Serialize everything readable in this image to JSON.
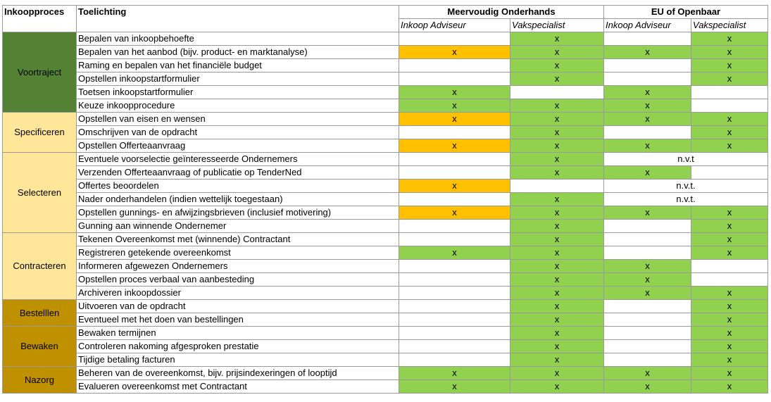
{
  "header": {
    "process": "Inkoopproces",
    "explanation": "Toelichting",
    "groups": [
      {
        "title": "Meervoudig Onderhands",
        "subs": [
          "Inkoop Adviseur",
          "Vakspecialist"
        ]
      },
      {
        "title": "EU of Openbaar",
        "subs": [
          "Inkoop Adviseur",
          "Vakspecialist"
        ]
      }
    ]
  },
  "groups": [
    {
      "label": "Voortraject",
      "fill": "#548235",
      "rows": [
        {
          "task": "Bepalen van inkoopbehoefte",
          "cells": [
            {
              "fill": "#ffffff"
            },
            {
              "text": "x",
              "fill": "#92d050"
            },
            {
              "fill": "#ffffff"
            },
            {
              "text": "x",
              "fill": "#92d050"
            }
          ]
        },
        {
          "task": "Bepalen van het aanbod (bijv. product- en marktanalyse)",
          "cells": [
            {
              "text": "x",
              "fill": "#ffc000"
            },
            {
              "text": "x",
              "fill": "#92d050"
            },
            {
              "text": "x",
              "fill": "#92d050"
            },
            {
              "text": "x",
              "fill": "#92d050"
            }
          ]
        },
        {
          "task": "Raming en bepalen van het financiële budget",
          "cells": [
            {
              "fill": "#ffffff"
            },
            {
              "text": "x",
              "fill": "#92d050"
            },
            {
              "fill": "#ffffff"
            },
            {
              "text": "x",
              "fill": "#92d050"
            }
          ]
        },
        {
          "task": "Opstellen inkoopstartformulier",
          "cells": [
            {
              "fill": "#ffffff"
            },
            {
              "text": "x",
              "fill": "#92d050"
            },
            {
              "fill": "#ffffff"
            },
            {
              "text": "x",
              "fill": "#92d050"
            }
          ]
        },
        {
          "task": "Toetsen inkoopstartformulier",
          "cells": [
            {
              "text": "x",
              "fill": "#92d050"
            },
            {
              "fill": "#ffffff"
            },
            {
              "text": "x",
              "fill": "#92d050"
            },
            {
              "fill": "#ffffff"
            }
          ]
        },
        {
          "task": "Keuze inkoopprocedure",
          "cells": [
            {
              "text": "x",
              "fill": "#92d050"
            },
            {
              "text": "x",
              "fill": "#92d050"
            },
            {
              "text": "x",
              "fill": "#92d050"
            },
            {
              "fill": "#ffffff"
            }
          ]
        }
      ]
    },
    {
      "label": "Specificeren",
      "fill": "#ffe699",
      "rows": [
        {
          "task": "Opstellen van eisen en wensen",
          "cells": [
            {
              "text": "x",
              "fill": "#ffc000"
            },
            {
              "text": "x",
              "fill": "#92d050"
            },
            {
              "text": "x",
              "fill": "#92d050"
            },
            {
              "text": "x",
              "fill": "#92d050"
            }
          ]
        },
        {
          "task": "Omschrijven van de opdracht",
          "cells": [
            {
              "fill": "#ffffff"
            },
            {
              "text": "x",
              "fill": "#92d050"
            },
            {
              "fill": "#ffffff"
            },
            {
              "text": "x",
              "fill": "#92d050"
            }
          ]
        },
        {
          "task": "Opstellen Offerteaanvraag",
          "cells": [
            {
              "text": "x",
              "fill": "#ffc000"
            },
            {
              "text": "x",
              "fill": "#92d050"
            },
            {
              "text": "x",
              "fill": "#92d050"
            },
            {
              "text": "x",
              "fill": "#92d050"
            }
          ]
        }
      ]
    },
    {
      "label": "Selecteren",
      "fill": "#ffe699",
      "rows": [
        {
          "task": "Eventuele voorselectie geïnteresseerde Ondernemers",
          "cells": [
            {
              "fill": "#ffffff"
            },
            {
              "text": "x",
              "fill": "#92d050"
            },
            {
              "text": "n.v.t",
              "fill": "#ffffff",
              "span": 2
            }
          ]
        },
        {
          "task": "Verzenden Offerteaanvraag of publicatie op TenderNed",
          "cells": [
            {
              "fill": "#ffffff"
            },
            {
              "text": "x",
              "fill": "#92d050"
            },
            {
              "text": "x",
              "fill": "#92d050"
            },
            {
              "fill": "#ffffff"
            }
          ]
        },
        {
          "task": "Offertes beoordelen",
          "cells": [
            {
              "text": "x",
              "fill": "#ffc000"
            },
            {
              "fill": "#ffffff"
            },
            {
              "text": "n.v.t.",
              "fill": "#ffffff",
              "span": 2
            }
          ]
        },
        {
          "task": "Nader onderhandelen (indien wettelijk toegestaan)",
          "cells": [
            {
              "fill": "#ffffff"
            },
            {
              "text": "x",
              "fill": "#92d050"
            },
            {
              "text": "n.v.t.",
              "fill": "#ffffff",
              "span": 2
            }
          ]
        },
        {
          "task": "Opstellen gunnings- en afwijzingsbrieven (inclusief motivering)",
          "cells": [
            {
              "text": "x",
              "fill": "#ffc000"
            },
            {
              "text": "x",
              "fill": "#92d050"
            },
            {
              "text": "x",
              "fill": "#92d050"
            },
            {
              "text": "x",
              "fill": "#92d050"
            }
          ]
        },
        {
          "task": "Gunning aan winnende Ondernemer",
          "cells": [
            {
              "fill": "#ffffff"
            },
            {
              "text": "x",
              "fill": "#92d050"
            },
            {
              "fill": "#ffffff"
            },
            {
              "text": "x",
              "fill": "#92d050"
            }
          ]
        }
      ]
    },
    {
      "label": "Contracteren",
      "fill": "#ffe699",
      "rows": [
        {
          "task": "Tekenen Overeenkomst met (winnende) Contractant",
          "cells": [
            {
              "fill": "#ffffff"
            },
            {
              "text": "x",
              "fill": "#92d050"
            },
            {
              "fill": "#ffffff"
            },
            {
              "text": "x",
              "fill": "#92d050"
            }
          ]
        },
        {
          "task": "Registreren getekende overeenkomst",
          "cells": [
            {
              "text": "x",
              "fill": "#92d050"
            },
            {
              "text": "x",
              "fill": "#92d050"
            },
            {
              "fill": "#ffffff"
            },
            {
              "text": "x",
              "fill": "#92d050"
            }
          ]
        },
        {
          "task": "Informeren afgewezen Ondernemers",
          "cells": [
            {
              "fill": "#ffffff"
            },
            {
              "text": "x",
              "fill": "#92d050"
            },
            {
              "text": "x",
              "fill": "#92d050"
            },
            {
              "fill": "#ffffff"
            }
          ]
        },
        {
          "task": "Opstellen proces verbaal van aanbesteding",
          "cells": [
            {
              "fill": "#ffffff"
            },
            {
              "text": "x",
              "fill": "#92d050"
            },
            {
              "text": "x",
              "fill": "#92d050"
            },
            {
              "fill": "#ffffff"
            }
          ]
        },
        {
          "task": "Archiveren inkoopdossier",
          "cells": [
            {
              "fill": "#ffffff"
            },
            {
              "text": "x",
              "fill": "#92d050"
            },
            {
              "text": "x",
              "fill": "#92d050"
            },
            {
              "text": "x",
              "fill": "#92d050"
            }
          ]
        }
      ]
    },
    {
      "label": "Bestelllen",
      "fill": "#bf9000",
      "rows": [
        {
          "task": "Uitvoeren van de opdracht",
          "cells": [
            {
              "fill": "#ffffff"
            },
            {
              "text": "x",
              "fill": "#92d050"
            },
            {
              "fill": "#ffffff"
            },
            {
              "text": "x",
              "fill": "#92d050"
            }
          ]
        },
        {
          "task": "Eventueel met het doen van bestellingen",
          "cells": [
            {
              "fill": "#ffffff"
            },
            {
              "text": "x",
              "fill": "#92d050"
            },
            {
              "fill": "#ffffff"
            },
            {
              "text": "x",
              "fill": "#92d050"
            }
          ]
        }
      ]
    },
    {
      "label": "Bewaken",
      "fill": "#bf9000",
      "rows": [
        {
          "task": "Bewaken termijnen",
          "cells": [
            {
              "fill": "#ffffff"
            },
            {
              "text": "x",
              "fill": "#92d050"
            },
            {
              "fill": "#ffffff"
            },
            {
              "text": "x",
              "fill": "#92d050"
            }
          ]
        },
        {
          "task": "Controleren nakoming afgesproken prestatie",
          "cells": [
            {
              "fill": "#ffffff"
            },
            {
              "text": "x",
              "fill": "#92d050"
            },
            {
              "fill": "#ffffff"
            },
            {
              "text": "x",
              "fill": "#92d050"
            }
          ]
        },
        {
          "task": "Tijdige betaling facturen",
          "cells": [
            {
              "fill": "#ffffff"
            },
            {
              "text": "x",
              "fill": "#92d050"
            },
            {
              "fill": "#ffffff"
            },
            {
              "text": "x",
              "fill": "#92d050"
            }
          ]
        }
      ]
    },
    {
      "label": "Nazorg",
      "fill": "#bf9000",
      "rows": [
        {
          "task": "Beheren van de overeenkomst, bijv. prijsindexeringen of looptijd",
          "cells": [
            {
              "text": "x",
              "fill": "#92d050"
            },
            {
              "text": "x",
              "fill": "#92d050"
            },
            {
              "text": "x",
              "fill": "#92d050"
            },
            {
              "text": "x",
              "fill": "#92d050"
            }
          ]
        },
        {
          "task": "Evalueren overeenkomst met Contractant",
          "cells": [
            {
              "text": "x",
              "fill": "#92d050"
            },
            {
              "text": "x",
              "fill": "#92d050"
            },
            {
              "text": "x",
              "fill": "#92d050"
            },
            {
              "text": "x",
              "fill": "#92d050"
            }
          ]
        }
      ]
    }
  ]
}
